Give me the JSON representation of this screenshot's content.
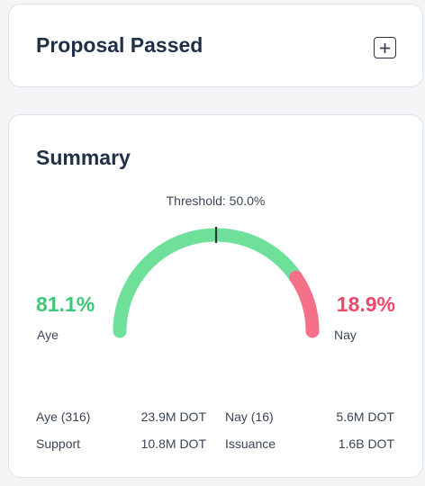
{
  "proposal": {
    "title": "Proposal Passed",
    "expand_icon": "plus-icon"
  },
  "summary": {
    "title": "Summary",
    "threshold_label": "Threshold: 50.0%",
    "threshold_value": 0.5,
    "aye_percent": "81.1%",
    "nay_percent": "18.9%",
    "aye_fraction": 0.811,
    "aye_label": "Aye",
    "nay_label": "Nay",
    "colors": {
      "aye": "#6ee09a",
      "nay": "#f7708a",
      "aye_text": "#3dc878",
      "nay_text": "#f0476a"
    },
    "stats": {
      "aye_votes_label": "Aye (316)",
      "aye_votes_value": "23.9M DOT",
      "nay_votes_label": "Nay (16)",
      "nay_votes_value": "5.6M DOT",
      "support_label": "Support",
      "support_value": "10.8M DOT",
      "issuance_label": "Issuance",
      "issuance_value": "1.6B DOT"
    }
  }
}
